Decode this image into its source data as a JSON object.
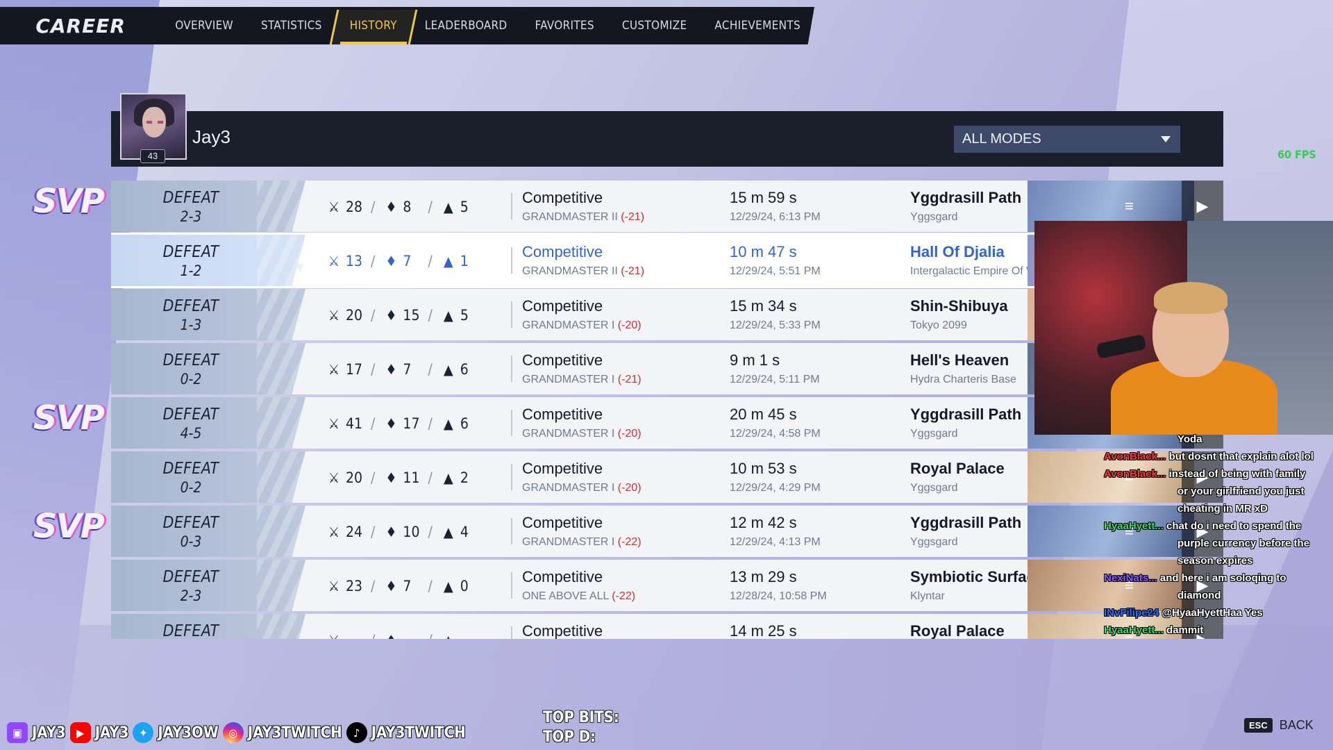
{
  "nav": {
    "title": "CAREER",
    "tabs": [
      "OVERVIEW",
      "STATISTICS",
      "HISTORY",
      "LEADERBOARD",
      "FAVORITES",
      "CUSTOMIZE",
      "ACHIEVEMENTS"
    ],
    "active_tab": "HISTORY"
  },
  "player": {
    "name": "Jay3",
    "level": "43"
  },
  "filter": {
    "selected": "ALL MODES"
  },
  "fps": "60 FPS",
  "matches": [
    {
      "result": "DEFEAT",
      "score": "2-3",
      "kills": "28",
      "deaths": "8",
      "assists": "5",
      "mode": "Competitive",
      "rank": "GRANDMASTER II",
      "delta": "(-21)",
      "duration": "15 m 59 s",
      "date": "12/29/24, 6:13 PM",
      "map": "Yggdrasill Path",
      "region": "Yggsgard",
      "svp": true
    },
    {
      "result": "DEFEAT",
      "score": "1-2",
      "kills": "13",
      "deaths": "7",
      "assists": "1",
      "mode": "Competitive",
      "rank": "GRANDMASTER II",
      "delta": "(-21)",
      "duration": "10 m 47 s",
      "date": "12/29/24, 5:51 PM",
      "map": "Hall Of Djalia",
      "region": "Intergalactic Empire Of Wa",
      "svp": false,
      "selected": true
    },
    {
      "result": "DEFEAT",
      "score": "1-3",
      "kills": "20",
      "deaths": "15",
      "assists": "5",
      "mode": "Competitive",
      "rank": "GRANDMASTER I",
      "delta": "(-20)",
      "duration": "15 m 34 s",
      "date": "12/29/24, 5:33 PM",
      "map": "Shin-Shibuya",
      "region": "Tokyo 2099",
      "svp": false
    },
    {
      "result": "DEFEAT",
      "score": "0-2",
      "kills": "17",
      "deaths": "7",
      "assists": "6",
      "mode": "Competitive",
      "rank": "GRANDMASTER I",
      "delta": "(-21)",
      "duration": "9 m 1 s",
      "date": "12/29/24, 5:11 PM",
      "map": "Hell's Heaven",
      "region": "Hydra Charteris Base",
      "svp": false
    },
    {
      "result": "DEFEAT",
      "score": "4-5",
      "kills": "41",
      "deaths": "17",
      "assists": "6",
      "mode": "Competitive",
      "rank": "GRANDMASTER I",
      "delta": "(-20)",
      "duration": "20 m 45 s",
      "date": "12/29/24, 4:58 PM",
      "map": "Yggdrasill Path",
      "region": "Yggsgard",
      "svp": true
    },
    {
      "result": "DEFEAT",
      "score": "0-2",
      "kills": "20",
      "deaths": "11",
      "assists": "2",
      "mode": "Competitive",
      "rank": "GRANDMASTER I",
      "delta": "(-20)",
      "duration": "10 m 53 s",
      "date": "12/29/24, 4:29 PM",
      "map": "Royal Palace",
      "region": "Yggsgard",
      "svp": false
    },
    {
      "result": "DEFEAT",
      "score": "0-3",
      "kills": "24",
      "deaths": "10",
      "assists": "4",
      "mode": "Competitive",
      "rank": "GRANDMASTER I",
      "delta": "(-22)",
      "duration": "12 m 42 s",
      "date": "12/29/24, 4:13 PM",
      "map": "Yggdrasill Path",
      "region": "Yggsgard",
      "svp": true
    },
    {
      "result": "DEFEAT",
      "score": "2-3",
      "kills": "23",
      "deaths": "7",
      "assists": "0",
      "mode": "Competitive",
      "rank": "ONE ABOVE ALL",
      "delta": "(-22)",
      "duration": "13 m 29 s",
      "date": "12/28/24, 10:58 PM",
      "map": "Symbiotic Surface",
      "region": "Klyntar",
      "svp": false
    },
    {
      "result": "DEFEAT",
      "score": "",
      "kills": "",
      "deaths": "",
      "assists": "",
      "mode": "Competitive",
      "rank": "",
      "delta": "",
      "duration": "14 m 25 s",
      "date": "",
      "map": "Royal Palace",
      "region": "",
      "svp": false
    }
  ],
  "svp_label": "SVP",
  "chat": [
    {
      "user": "",
      "text": "Yoda"
    },
    {
      "user": "AvonBlack...",
      "text": "but dosnt that explain alot lol"
    },
    {
      "user": "AvonBlack...",
      "text": "instead of being with family"
    },
    {
      "user": "",
      "text": "or your girlfriend you just"
    },
    {
      "user": "",
      "text": "cheating in MR xD"
    },
    {
      "user": "HyaaHyett...",
      "text": "chat do i need to spend the"
    },
    {
      "user": "",
      "text": "purple currency before the"
    },
    {
      "user": "",
      "text": "season expires"
    },
    {
      "user": "NexiNats...",
      "text": "and here i am soloqing to"
    },
    {
      "user": "",
      "text": "diamond"
    },
    {
      "user": "INvFilipe24",
      "text": "@HyaaHyettHaa Yes"
    },
    {
      "user": "HyaaHyett...",
      "text": "dammit"
    }
  ],
  "socials": [
    {
      "icon": "twitch-icon",
      "handle": "JAY3"
    },
    {
      "icon": "youtube-icon",
      "handle": "JAY3"
    },
    {
      "icon": "twitter-icon",
      "handle": "JAY3OW"
    },
    {
      "icon": "instagram-icon",
      "handle": "JAY3TWITCH"
    },
    {
      "icon": "tiktok-icon",
      "handle": "JAY3TWITCH"
    }
  ],
  "top_bits": "TOP BITS:",
  "top_d": "TOP D:",
  "back": {
    "key": "ESC",
    "label": "BACK"
  },
  "colors": {
    "accent": "#f2c84b",
    "loss_delta": "#d02e2e",
    "selected_text": "#3564c5",
    "panel_dark": "#1a1f2b"
  }
}
